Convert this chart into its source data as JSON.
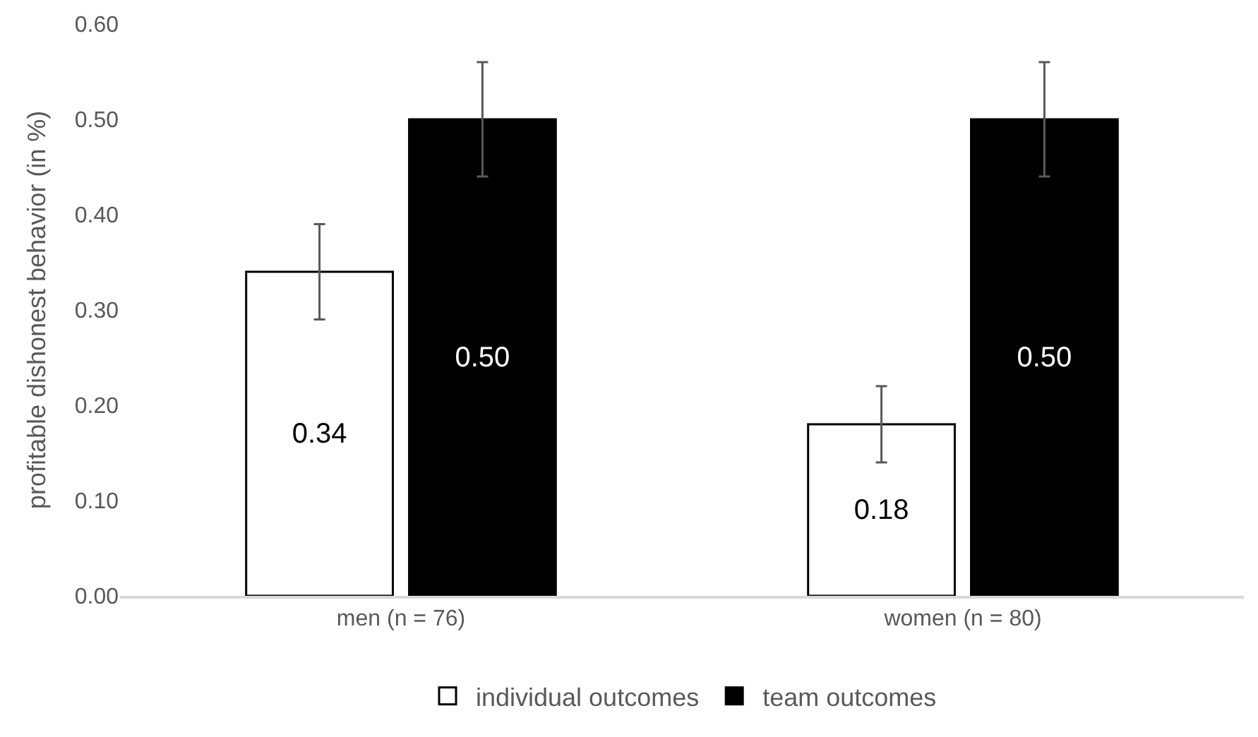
{
  "chart_data": {
    "type": "bar",
    "ylabel": "profitable dishonest behavior (in %)",
    "categories": [
      "men (n = 76)",
      "women (n = 80)"
    ],
    "series": [
      {
        "name": "individual outcomes",
        "color": "#ffffff",
        "values": [
          0.34,
          0.18
        ],
        "errors": [
          0.05,
          0.04
        ],
        "value_labels": [
          "0.34",
          "0.18"
        ]
      },
      {
        "name": "team outcomes",
        "color": "#000000",
        "values": [
          0.5,
          0.5
        ],
        "errors": [
          0.06,
          0.06
        ],
        "value_labels": [
          "0.50",
          "0.50"
        ]
      }
    ],
    "ylim": [
      0,
      0.6
    ],
    "yticks": [
      {
        "value": 0,
        "label": "0.00"
      },
      {
        "value": 0.1,
        "label": "0.10"
      },
      {
        "value": 0.2,
        "label": "0.20"
      },
      {
        "value": 0.3,
        "label": "0.30"
      },
      {
        "value": 0.4,
        "label": "0.40"
      },
      {
        "value": 0.5,
        "label": "0.50"
      },
      {
        "value": 0.6,
        "label": "0.60"
      }
    ],
    "grid": false,
    "legend": "bottom"
  }
}
